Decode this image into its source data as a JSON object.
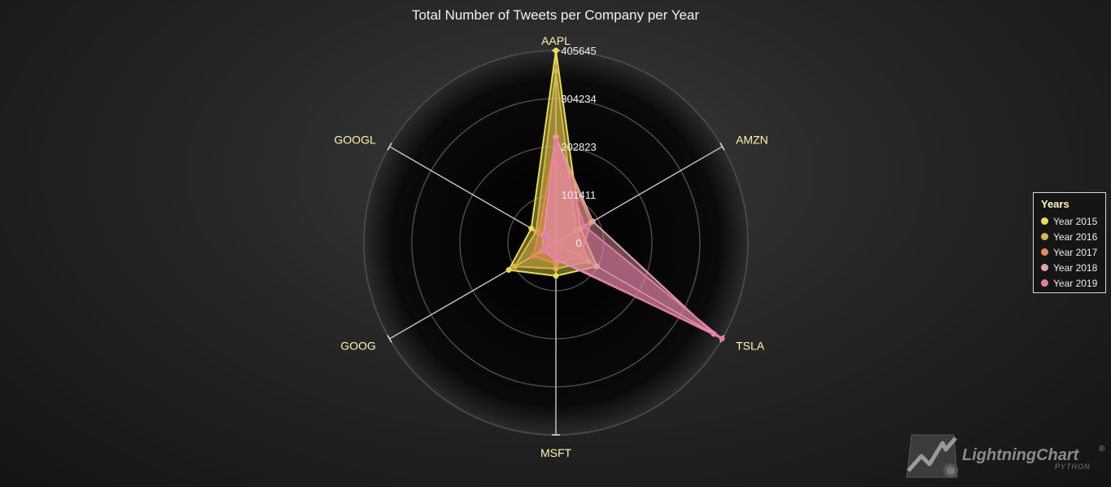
{
  "chart_data": {
    "type": "radar",
    "title": "Total Number of Tweets per Company per Year",
    "axes": [
      "AAPL",
      "AMZN",
      "TSLA",
      "MSFT",
      "GOOG",
      "GOOGL"
    ],
    "ticks": [
      "0",
      "101411",
      "202823",
      "304234",
      "405645"
    ],
    "range": [
      0,
      405645
    ],
    "series": [
      {
        "name": "Year 2015",
        "color": "#e8dd52",
        "values": [
          405645,
          60000,
          100000,
          70000,
          115000,
          60000
        ]
      },
      {
        "name": "Year 2016",
        "color": "#d9b648",
        "values": [
          362000,
          50000,
          80000,
          55000,
          100000,
          48000
        ]
      },
      {
        "name": "Year 2017",
        "color": "#e88a55",
        "values": [
          225000,
          85000,
          60000,
          45000,
          55000,
          42000
        ]
      },
      {
        "name": "Year 2018",
        "color": "#e0a2a2",
        "values": [
          222000,
          90000,
          385000,
          35000,
          32000,
          30000
        ]
      },
      {
        "name": "Year 2019",
        "color": "#e879ac",
        "values": [
          215000,
          70000,
          405000,
          32000,
          30000,
          27000
        ]
      }
    ],
    "legend_title": "Years",
    "legend_position": "right"
  },
  "branding": {
    "logo_text": "LightningChart",
    "logo_sub": "PYTHON",
    "logo_mark": "®"
  }
}
